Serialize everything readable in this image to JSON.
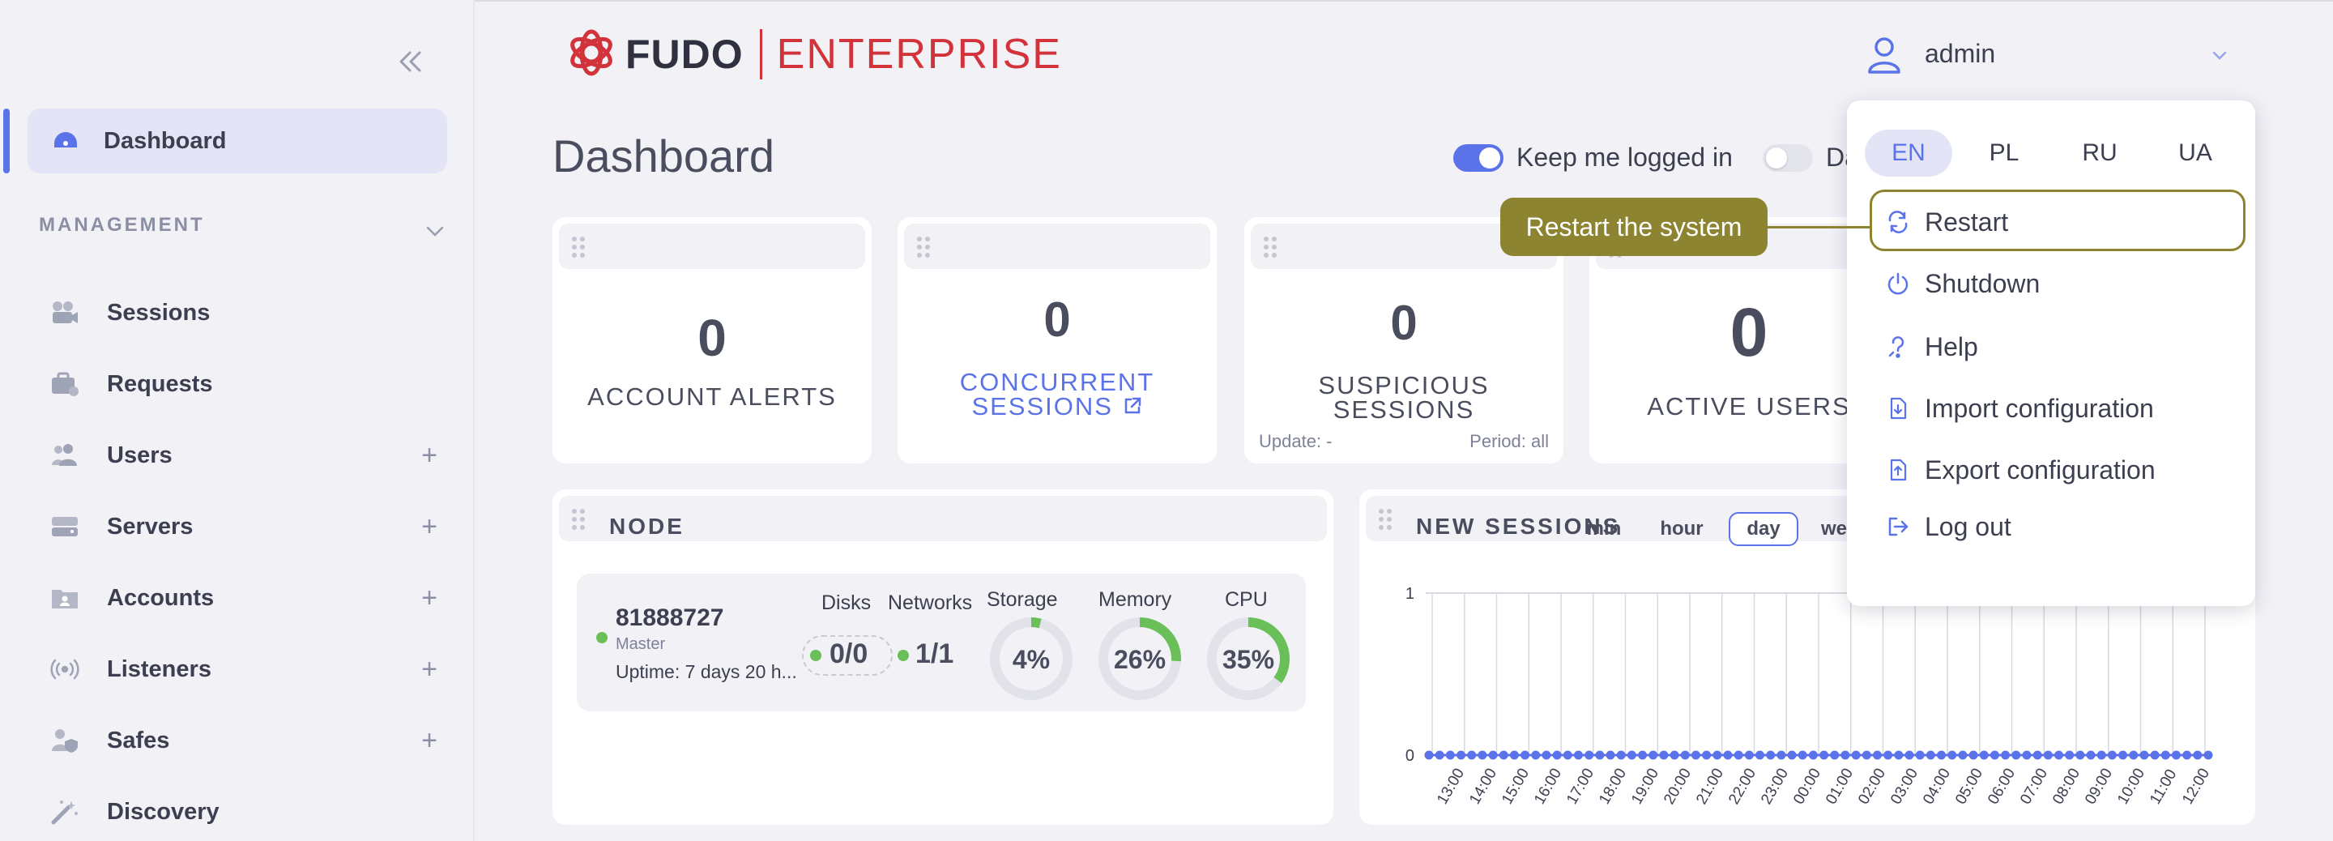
{
  "brand": {
    "name": "FUDO",
    "edition": "ENTERPRISE"
  },
  "user": {
    "name": "admin"
  },
  "sidebar": {
    "dashboard_label": "Dashboard",
    "section_title": "MANAGEMENT",
    "items": [
      {
        "label": "Sessions",
        "icon": "video-camera-icon",
        "plus": ""
      },
      {
        "label": "Requests",
        "icon": "briefcase-icon",
        "plus": ""
      },
      {
        "label": "Users",
        "icon": "users-icon",
        "plus": "+"
      },
      {
        "label": "Servers",
        "icon": "server-icon",
        "plus": "+"
      },
      {
        "label": "Accounts",
        "icon": "account-folder-icon",
        "plus": "+"
      },
      {
        "label": "Listeners",
        "icon": "broadcast-icon",
        "plus": "+"
      },
      {
        "label": "Safes",
        "icon": "user-shield-icon",
        "plus": "+"
      },
      {
        "label": "Discovery",
        "icon": "magic-wand-icon",
        "plus": ""
      }
    ]
  },
  "page": {
    "title": "Dashboard",
    "keep_logged_in": "Keep me logged in",
    "second_toggle": "Da"
  },
  "stats": {
    "account_alerts": {
      "value": "0",
      "label": "ACCOUNT ALERTS"
    },
    "concurrent": {
      "value": "0",
      "label_line1": "CONCURRENT",
      "label_line2": "SESSIONS"
    },
    "suspicious": {
      "value": "0",
      "label_line1": "SUSPICIOUS",
      "label_line2": "SESSIONS",
      "update": "Update: -",
      "period": "Period: all"
    },
    "active_users": {
      "value": "0",
      "label": "ACTIVE USERS"
    }
  },
  "node": {
    "title": "NODE",
    "id": "81888727",
    "role": "Master",
    "uptime": "Uptime: 7 days 20 h...",
    "disks_head": "Disks",
    "disks": "0/0",
    "networks_head": "Networks",
    "networks": "1/1",
    "storage_head": "Storage",
    "storage_pct": 4,
    "storage_text": "4%",
    "memory_head": "Memory",
    "memory_pct": 26,
    "memory_text": "26%",
    "cpu_head": "CPU",
    "cpu_pct": 35,
    "cpu_text": "35%"
  },
  "new_sessions": {
    "title": "NEW SESSIONS",
    "ranges": [
      "min",
      "hour",
      "day",
      "we"
    ],
    "selected_range": "day",
    "colors": {
      "accent": "#5b73e8",
      "grid": "#d8d9e0"
    }
  },
  "chart_data": {
    "type": "line",
    "title": "NEW SESSIONS",
    "xlabel": "",
    "ylabel": "",
    "ylim": [
      0,
      1
    ],
    "y_ticks": [
      "1",
      "0"
    ],
    "x": [
      "13:00",
      "14:00",
      "15:00",
      "16:00",
      "17:00",
      "18:00",
      "19:00",
      "20:00",
      "21:00",
      "22:00",
      "23:00",
      "00:00",
      "01:00",
      "02:00",
      "03:00",
      "04:00",
      "05:00",
      "06:00",
      "07:00",
      "08:00",
      "09:00",
      "10:00",
      "11:00",
      "12:00"
    ],
    "series": [
      {
        "values": [
          0,
          0,
          0,
          0,
          0,
          0,
          0,
          0,
          0,
          0,
          0,
          0,
          0,
          0,
          0,
          0,
          0,
          0,
          0,
          0,
          0,
          0,
          0,
          0
        ]
      }
    ],
    "grid": true
  },
  "dropdown": {
    "languages": [
      "EN",
      "PL",
      "RU",
      "UA"
    ],
    "selected_language": "EN",
    "items": [
      {
        "label": "Restart",
        "icon": "restart-icon"
      },
      {
        "label": "Shutdown",
        "icon": "power-icon"
      },
      {
        "label": "Help",
        "icon": "help-icon"
      },
      {
        "label": "Import configuration",
        "icon": "file-import-icon"
      },
      {
        "label": "Export configuration",
        "icon": "file-export-icon"
      },
      {
        "label": "Log out",
        "icon": "logout-icon"
      }
    ]
  },
  "tooltip": {
    "text": "Restart the system",
    "color": "#8c8430"
  }
}
